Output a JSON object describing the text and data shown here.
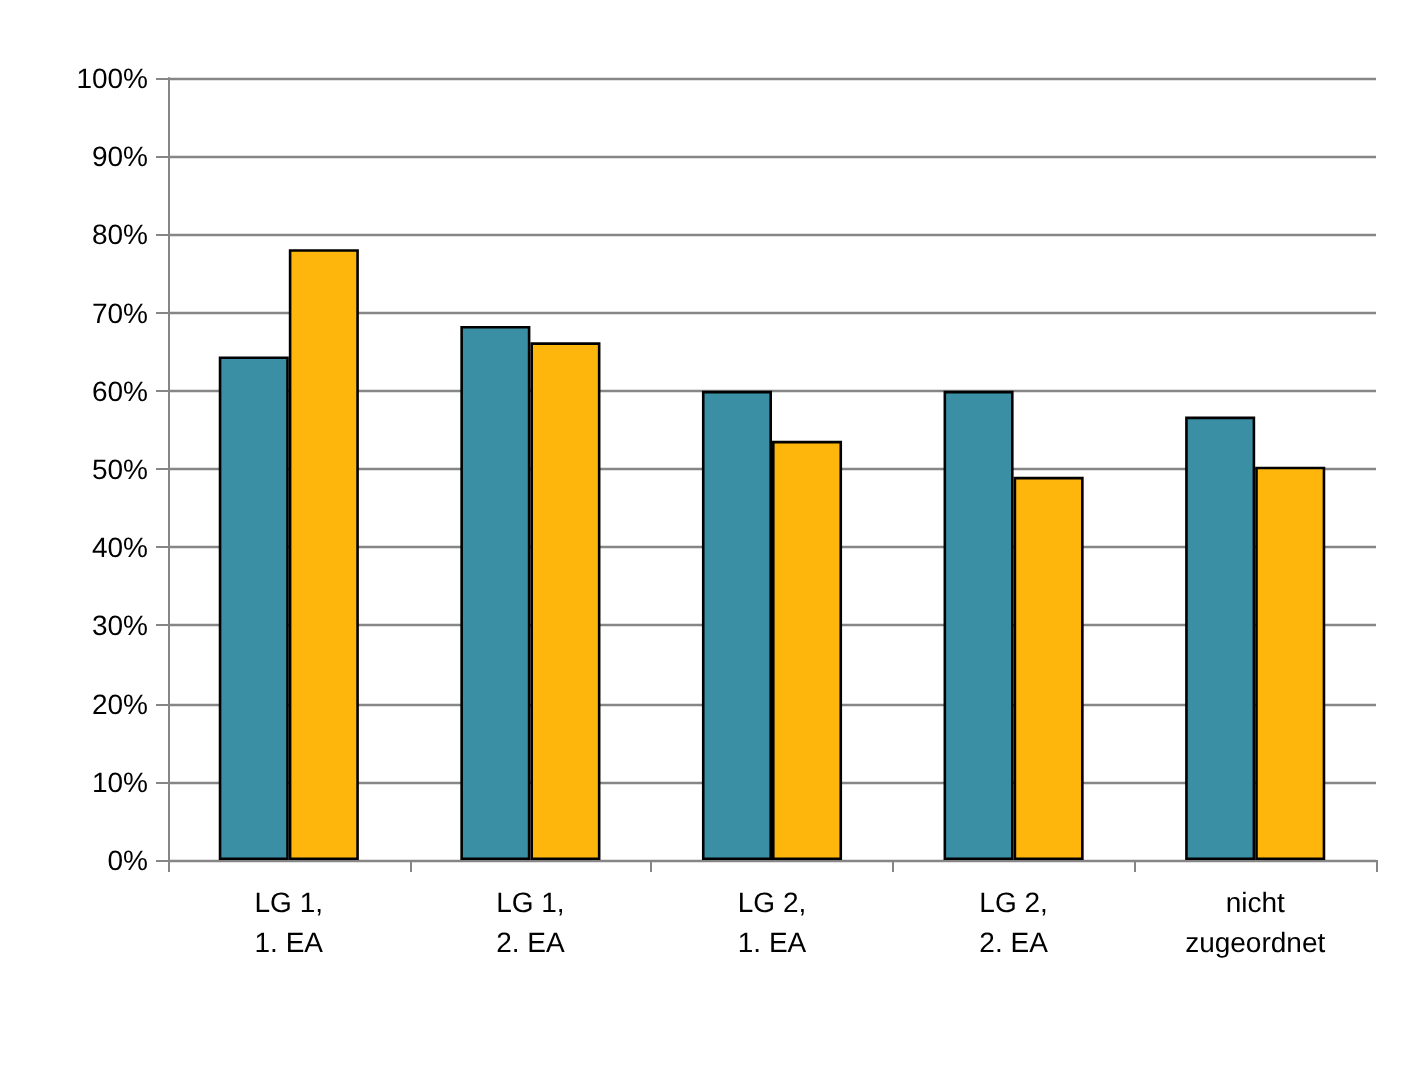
{
  "chart_data": {
    "type": "bar",
    "categories": [
      "LG 1,\n1. EA",
      "LG 1,\n2. EA",
      "LG 2,\n1. EA",
      "LG 2,\n2. EA",
      "nicht\nzugeordnet"
    ],
    "series": [
      {
        "color": "#3a8fa5",
        "values": [
          64.4,
          68.3,
          60,
          60,
          56.7
        ]
      },
      {
        "color": "#ffb60c",
        "values": [
          78.1,
          66.2,
          53.6,
          49,
          50.3
        ]
      }
    ],
    "ylim": [
      0,
      100
    ],
    "yticks": [
      {
        "value": 0,
        "label": "0%"
      },
      {
        "value": 10,
        "label": "10%"
      },
      {
        "value": 20,
        "label": "20%"
      },
      {
        "value": 30,
        "label": "30%"
      },
      {
        "value": 40,
        "label": "40%"
      },
      {
        "value": 50,
        "label": "50%"
      },
      {
        "value": 60,
        "label": "60%"
      },
      {
        "value": 70,
        "label": "70%"
      },
      {
        "value": 80,
        "label": "80%"
      },
      {
        "value": 90,
        "label": "90%"
      },
      {
        "value": 100,
        "label": "100%"
      }
    ],
    "grid": "y"
  }
}
